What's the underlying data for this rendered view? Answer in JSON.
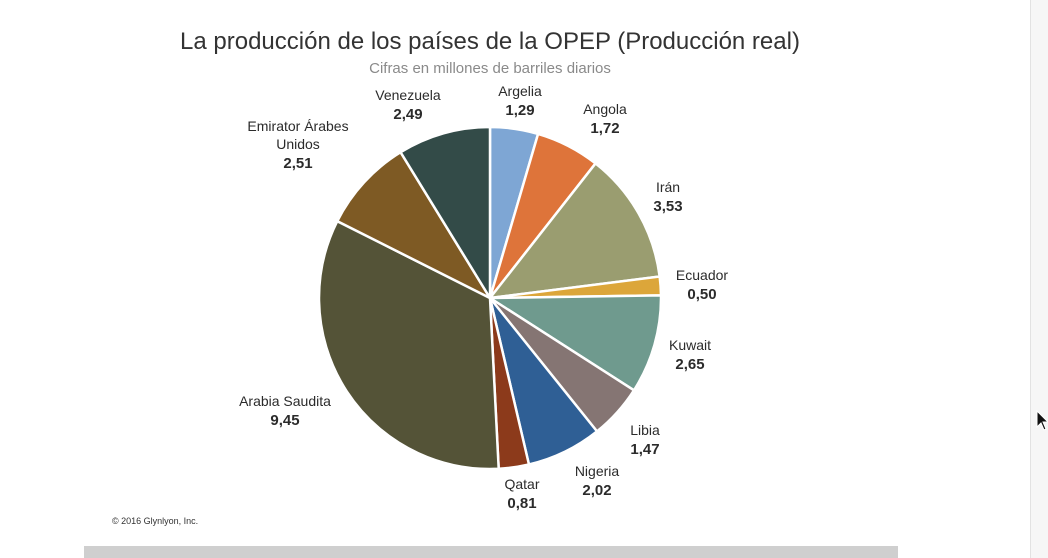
{
  "chart_data": {
    "type": "pie",
    "title": "La producción de los países de la OPEP (Producción real)",
    "subtitle": "Cifras en millones de barriles diarios",
    "slices": [
      {
        "label": "Argelia",
        "value_text": "1,29",
        "value": 1.29,
        "color": "#7ea6d4"
      },
      {
        "label": "Angola",
        "value_text": "1,72",
        "value": 1.72,
        "color": "#de743a"
      },
      {
        "label": "Irán",
        "value_text": "3,53",
        "value": 3.53,
        "color": "#9a9d70"
      },
      {
        "label": "Ecuador",
        "value_text": "0,50",
        "value": 0.5,
        "color": "#dca63a"
      },
      {
        "label": "Kuwait",
        "value_text": "2,65",
        "value": 2.65,
        "color": "#6f9a8e"
      },
      {
        "label": "Libia",
        "value_text": "1,47",
        "value": 1.47,
        "color": "#857573"
      },
      {
        "label": "Nigeria",
        "value_text": "2,02",
        "value": 2.02,
        "color": "#2f5f95"
      },
      {
        "label": "Qatar",
        "value_text": "0,81",
        "value": 0.81,
        "color": "#8c3a1b"
      },
      {
        "label": "Arabia Saudita",
        "value_text": "9,45",
        "value": 9.45,
        "color": "#545337"
      },
      {
        "label": "Emirator Árabes Unidos",
        "value_text": "2,51",
        "value": 2.51,
        "color": "#7e5a24"
      },
      {
        "label": "Venezuela",
        "value_text": "2,49",
        "value": 2.49,
        "color": "#334b48"
      }
    ]
  },
  "copyright": "© 2016 Glynlyon, Inc."
}
